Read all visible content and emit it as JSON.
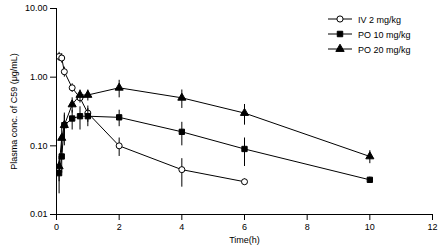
{
  "chart_data": {
    "type": "line",
    "x_label": "Time(h)",
    "y_label": "Plasma conc. of C59 (μg/mL)",
    "log": "y",
    "grid": false,
    "legend": "top-right",
    "xlim": [
      0,
      12
    ],
    "xticks": [
      0,
      2,
      4,
      6,
      8,
      10,
      12
    ],
    "ylim": [
      0.01,
      10
    ],
    "yticks": [
      0.01,
      {
        "value": 0.1,
        "label": "0.10"
      },
      {
        "value": 1,
        "label": "1.00"
      },
      {
        "value": 10,
        "label": "10.00"
      }
    ],
    "series": [
      {
        "name": "IV 2 mg/kg",
        "color": "#000000",
        "marker": "circle-open",
        "x": [
          0.083,
          0.167,
          0.25,
          0.5,
          0.75,
          1,
          2,
          4,
          6
        ],
        "values": [
          2.0,
          1.9,
          1.2,
          0.7,
          0.5,
          0.3,
          0.1,
          0.045,
          0.03
        ],
        "errors": [
          0.3,
          0.3,
          0.2,
          0.1,
          0.08,
          0.08,
          0.03,
          0.02,
          0.003
        ]
      },
      {
        "name": "PO 10 mg/kg",
        "color": "#000000",
        "marker": "square",
        "x": [
          0.083,
          0.167,
          0.25,
          0.5,
          0.75,
          1,
          2,
          4,
          6,
          10
        ],
        "values": [
          0.04,
          0.07,
          0.2,
          0.25,
          0.27,
          0.27,
          0.26,
          0.16,
          0.09,
          0.032
        ],
        "errors": [
          0.02,
          0.03,
          0.1,
          0.08,
          0.1,
          0.08,
          0.07,
          0.06,
          0.04,
          0.003
        ]
      },
      {
        "name": "PO 20 mg/kg",
        "color": "#000000",
        "marker": "triangle",
        "x": [
          0.083,
          0.167,
          0.25,
          0.5,
          0.75,
          1,
          2,
          4,
          6,
          10
        ],
        "values": [
          0.05,
          0.13,
          0.2,
          0.4,
          0.55,
          0.55,
          0.7,
          0.5,
          0.3,
          0.07
        ],
        "errors": [
          0.02,
          0.05,
          0.08,
          0.1,
          0.1,
          0.1,
          0.2,
          0.15,
          0.1,
          0.015
        ]
      }
    ]
  }
}
